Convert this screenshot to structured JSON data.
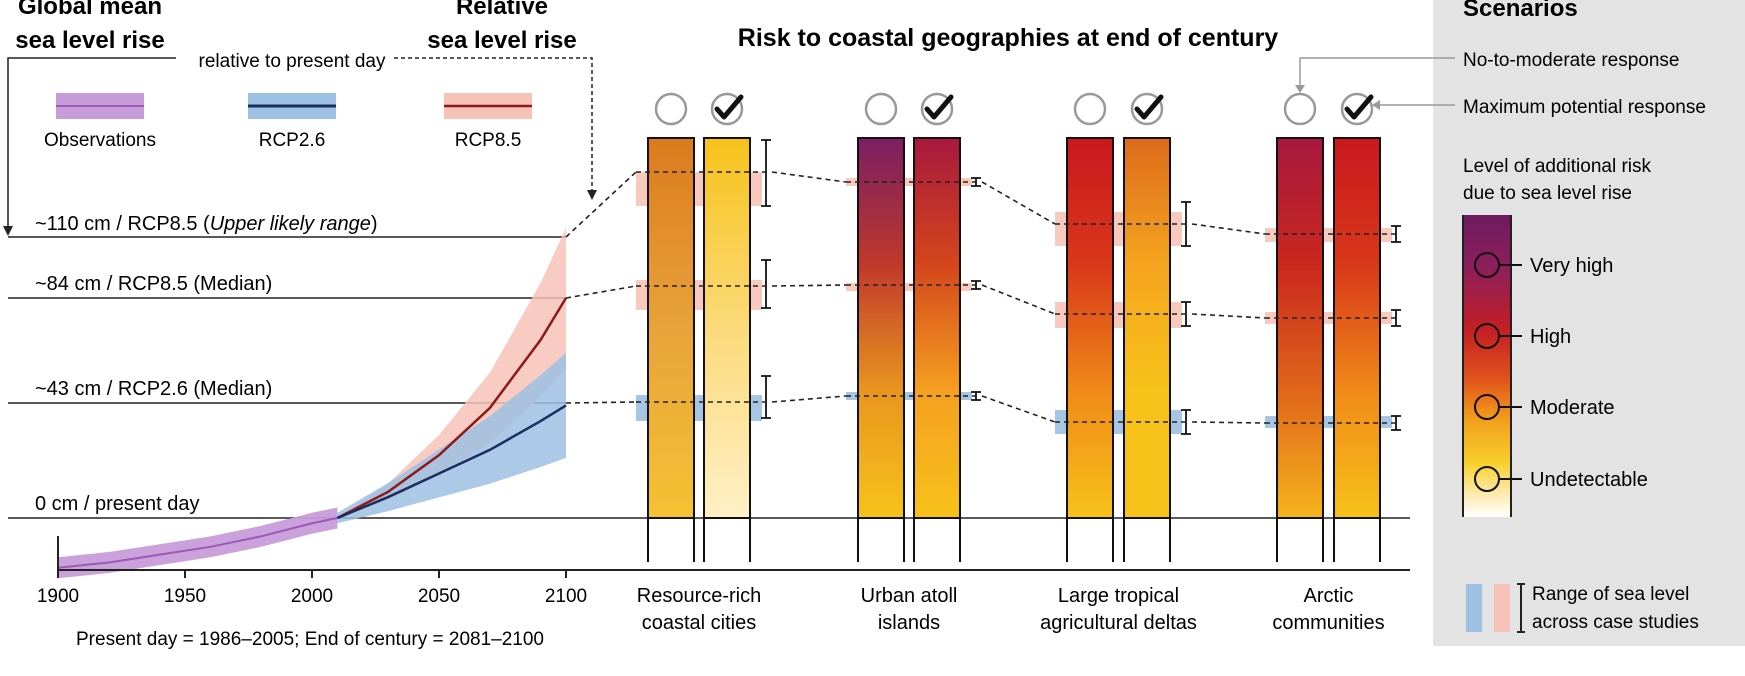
{
  "header": {
    "gm_line1": "Global mean",
    "gm_line2": "sea level rise",
    "rel_line1": "Relative",
    "rel_line2": "sea level rise",
    "relative_note": "relative to present day",
    "risk_title": "Risk to coastal geographies at end of century"
  },
  "legend": {
    "items": [
      {
        "label": "Observations",
        "color": "#9b59b6",
        "band": "#c79cd9"
      },
      {
        "label": "RCP2.6",
        "color": "#1a2e5e",
        "band": "#9dc0e3"
      },
      {
        "label": "RCP8.5",
        "color": "#8b1a1a",
        "band": "#f7c3b8"
      }
    ]
  },
  "levels": {
    "upper_prefix": "~110 cm / RCP8.5 (",
    "upper_italic": "Upper likely range",
    "upper_suffix": ")",
    "median85": "~84  cm / RCP8.5 (Median)",
    "median26": "~43 cm / RCP2.6 (Median)",
    "present": "0 cm / present day"
  },
  "footnote": "Present day = 1986–2005; End of century = 2081–2100",
  "chart_data": {
    "type": "line",
    "x_ticks": [
      "1900",
      "1950",
      "2000",
      "2050",
      "2100"
    ],
    "xlim": [
      1900,
      2100
    ],
    "ylabel": "Global mean sea level rise",
    "series": [
      {
        "name": "Observations",
        "x": [
          1900,
          1920,
          1940,
          1960,
          1980,
          2000,
          2010
        ],
        "y": [
          -19,
          -17,
          -14,
          -11,
          -7,
          -2,
          0
        ]
      },
      {
        "name": "RCP2.6",
        "x": [
          2010,
          2030,
          2050,
          2070,
          2090,
          2100
        ],
        "y": [
          0,
          8,
          17,
          26,
          37,
          43
        ]
      },
      {
        "name": "RCP8.5",
        "x": [
          2010,
          2030,
          2050,
          2070,
          2090,
          2100
        ],
        "y": [
          0,
          10,
          24,
          42,
          68,
          84
        ]
      }
    ],
    "reference_levels_cm": [
      110,
      84,
      43,
      0
    ],
    "risk": {
      "title": "Risk to coastal geographies at end of century",
      "geographies": [
        {
          "name_line1": "Resource-rich",
          "name_line2": "coastal cities",
          "no_response": [
            "#db7a1e",
            "#e8a33a",
            "#f5c233"
          ],
          "max_response": [
            "#f7c21a",
            "#fbda7a",
            "#fff0c6"
          ]
        },
        {
          "name_line1": "Urban atoll",
          "name_line2": "islands",
          "no_response": [
            "#7b1e62",
            "#c0392b",
            "#e8961e",
            "#f7c21a"
          ],
          "max_response": [
            "#a8183e",
            "#d4461c",
            "#f5a020",
            "#f7c21a"
          ]
        },
        {
          "name_line1": "Large tropical",
          "name_line2": "agricultural deltas",
          "no_response": [
            "#c9181f",
            "#d9381a",
            "#f08a18",
            "#f7c21a"
          ],
          "max_response": [
            "#dd6a1c",
            "#f5a51e",
            "#f7c21a",
            "#f7c21a"
          ]
        },
        {
          "name_line1": "Arctic",
          "name_line2": "communities",
          "no_response": [
            "#a8183e",
            "#c9281e",
            "#e0661a",
            "#f5b41c"
          ],
          "max_response": [
            "#c9181f",
            "#d9381a",
            "#f08a18",
            "#f7c21a"
          ]
        }
      ]
    }
  },
  "scenarios": {
    "title": "Scenarios",
    "no_to_moderate": "No-to-moderate response",
    "maximum": "Maximum potential response",
    "risk_title_line1": "Level of additional risk",
    "risk_title_line2": "due to sea level rise",
    "levels": [
      "Very high",
      "High",
      "Moderate",
      "Undetectable"
    ],
    "range_line1": "Range of sea level",
    "range_line2": "across case studies"
  },
  "colors": {
    "very_high": "#7b1e62",
    "high": "#c9181f",
    "moderate": "#f7c21a",
    "undetectable": "#ffffff",
    "panel_bg": "#e3e3e3"
  }
}
